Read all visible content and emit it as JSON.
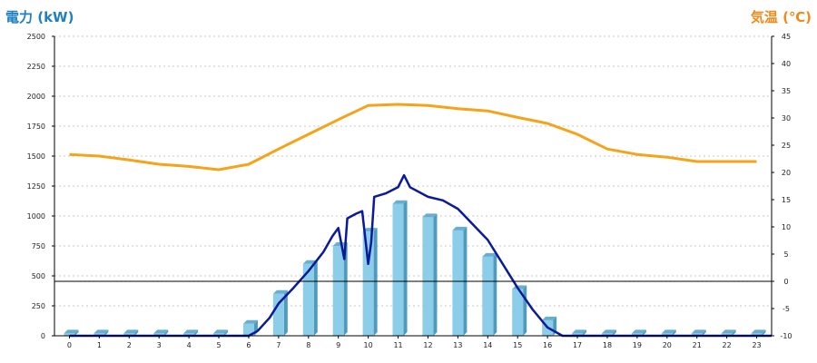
{
  "chart_data": {
    "type": "bar",
    "left_axis": {
      "title": "電力 (kW)",
      "ylim": [
        0,
        2500
      ],
      "ticks": [
        "0",
        "250",
        "500",
        "750",
        "1000",
        "1250",
        "1500",
        "1750",
        "2000",
        "2250",
        "2500"
      ]
    },
    "right_axis": {
      "title": "気温 (℃)",
      "ylim": [
        -10,
        45
      ],
      "ticks": [
        "-10",
        "-5",
        "0",
        "5",
        "10",
        "15",
        "20",
        "25",
        "30",
        "35",
        "40",
        "45"
      ]
    },
    "categories": [
      "0",
      "1",
      "2",
      "3",
      "4",
      "5",
      "6",
      "7",
      "8",
      "9",
      "10",
      "11",
      "12",
      "13",
      "14",
      "15",
      "16",
      "17",
      "18",
      "19",
      "20",
      "21",
      "22",
      "23"
    ],
    "series": [
      {
        "type": "bar",
        "axis": "left",
        "color": "#8ccde9",
        "values": [
          20,
          20,
          20,
          20,
          20,
          20,
          100,
          350,
          600,
          750,
          870,
          1100,
          990,
          880,
          660,
          390,
          130,
          20,
          20,
          20,
          20,
          20,
          20,
          20
        ]
      },
      {
        "type": "line",
        "axis": "left",
        "color": "#0a1a9a",
        "points": [
          [
            0,
            0
          ],
          [
            6,
            0
          ],
          [
            6.3,
            40
          ],
          [
            6.7,
            150
          ],
          [
            7,
            270
          ],
          [
            7.5,
            400
          ],
          [
            8,
            540
          ],
          [
            8.5,
            700
          ],
          [
            8.8,
            830
          ],
          [
            9,
            900
          ],
          [
            9.2,
            640
          ],
          [
            9.3,
            980
          ],
          [
            9.6,
            1020
          ],
          [
            9.8,
            1040
          ],
          [
            10,
            600
          ],
          [
            10.1,
            780
          ],
          [
            10.2,
            1160
          ],
          [
            10.6,
            1190
          ],
          [
            11,
            1240
          ],
          [
            11.2,
            1340
          ],
          [
            11.4,
            1240
          ],
          [
            12,
            1160
          ],
          [
            12.5,
            1130
          ],
          [
            13,
            1060
          ],
          [
            14,
            800
          ],
          [
            15,
            400
          ],
          [
            15.5,
            220
          ],
          [
            16,
            70
          ],
          [
            16.5,
            0
          ],
          [
            23.5,
            0
          ]
        ]
      },
      {
        "type": "line",
        "axis": "right",
        "color": "#f5a31a",
        "values": [
          23.3,
          23,
          22.3,
          21.5,
          21.1,
          20.5,
          21.5,
          24.3,
          27,
          29.7,
          32.3,
          32.5,
          32.3,
          31.7,
          31.3,
          30.1,
          29,
          27,
          24.3,
          23.3,
          22.8,
          22,
          22,
          22
        ]
      }
    ],
    "reference_line": {
      "axis": "right",
      "value": 0
    },
    "grid": true,
    "legend": "none"
  }
}
